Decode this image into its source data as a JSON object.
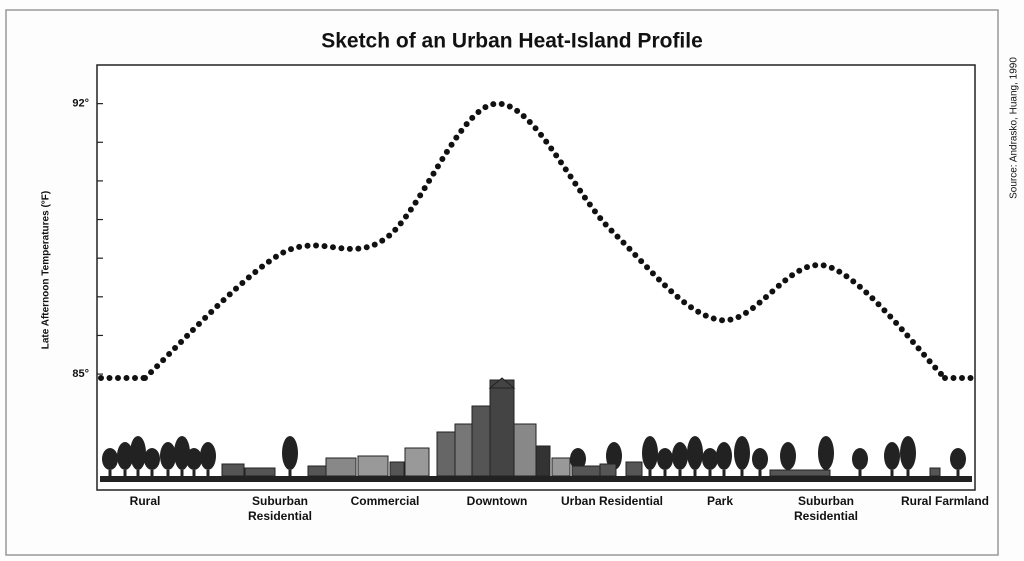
{
  "chart_data": {
    "type": "line",
    "title": "Sketch of an Urban Heat-Island Profile",
    "y_label": "Late Afternoon Temperatures (°F)",
    "source": "Source: Andrasko, Huang, 1990",
    "categories": [
      "Rural",
      "Suburban Residential",
      "Commercial",
      "Downtown",
      "Urban Residential",
      "Park",
      "Suburban Residential",
      "Rural Farmland"
    ],
    "values": [
      84.9,
      88.1,
      88.5,
      92,
      88.7,
      86.4,
      87.8,
      84.9
    ],
    "color": "#111111",
    "ylim": [
      82,
      93
    ],
    "yticks": [
      {
        "value": 85,
        "label": "85°"
      },
      {
        "value": 86,
        "label": null
      },
      {
        "value": 87,
        "label": null
      },
      {
        "value": 88,
        "label": null
      },
      {
        "value": 89,
        "label": null
      },
      {
        "value": 90,
        "label": null
      },
      {
        "value": 91,
        "label": null
      },
      {
        "value": 92,
        "label": "92°"
      }
    ]
  }
}
